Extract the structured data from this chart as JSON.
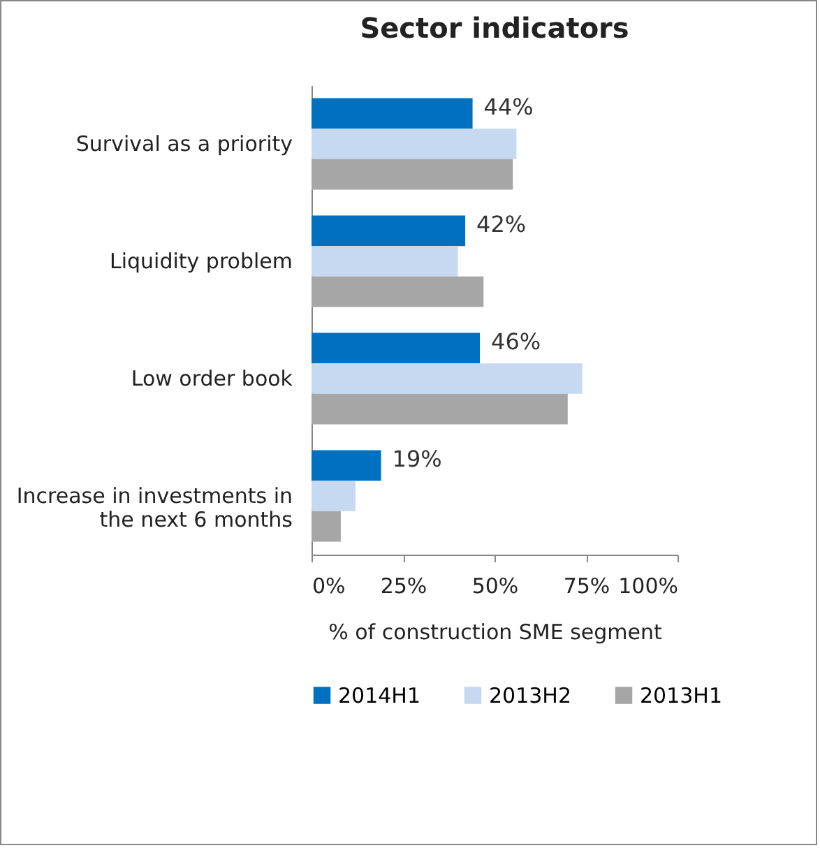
{
  "chart_data": {
    "type": "bar",
    "orientation": "horizontal",
    "title": "Sector indicators",
    "xlabel": "% of construction SME segment",
    "categories": [
      "Survival as a priority",
      "Liquidity problem",
      "Low order book",
      "Increase in investments in the next 6 months"
    ],
    "series": [
      {
        "name": "2014H1",
        "color": "#0070c0",
        "values": [
          44,
          42,
          46,
          19
        ],
        "value_labels": [
          "44%",
          "42%",
          "46%",
          "19%"
        ]
      },
      {
        "name": "2013H2",
        "color": "#c6d9f1",
        "values": [
          56,
          40,
          74,
          12
        ]
      },
      {
        "name": "2013H1",
        "color": "#a6a6a6",
        "values": [
          55,
          47,
          70,
          8
        ]
      }
    ],
    "xlim": [
      0,
      100
    ],
    "xticks": [
      {
        "value": 0,
        "label": "0%"
      },
      {
        "value": 25,
        "label": "25%"
      },
      {
        "value": 50,
        "label": "50%"
      },
      {
        "value": 75,
        "label": "75%"
      },
      {
        "value": 100,
        "label": "100%"
      }
    ],
    "grid": false,
    "legend": "bottom"
  }
}
